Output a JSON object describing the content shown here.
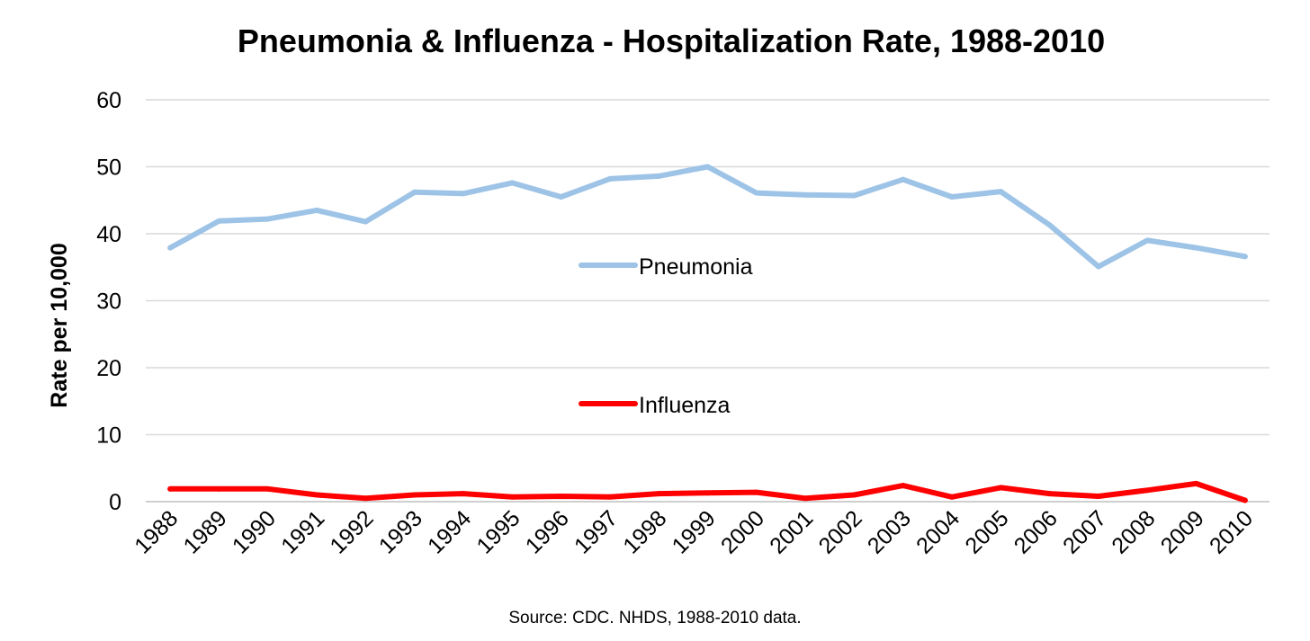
{
  "chart_data": {
    "type": "line",
    "title": "Pneumonia & Influenza - Hospitalization Rate, 1988-2010",
    "xlabel": "",
    "ylabel": "Rate per 10,000",
    "ylim": [
      0,
      60
    ],
    "yticks": [
      0,
      10,
      20,
      30,
      40,
      50,
      60
    ],
    "grid": true,
    "categories": [
      "1988",
      "1989",
      "1990",
      "1991",
      "1992",
      "1993",
      "1994",
      "1995",
      "1996",
      "1997",
      "1998",
      "1999",
      "2000",
      "2001",
      "2002",
      "2003",
      "2004",
      "2005",
      "2006",
      "2007",
      "2008",
      "2009",
      "2010"
    ],
    "series": [
      {
        "name": "Pneumonia",
        "color": "#9dc3e6",
        "values": [
          37.9,
          41.9,
          42.2,
          43.5,
          41.8,
          46.2,
          46.0,
          47.6,
          45.5,
          48.2,
          48.6,
          50.0,
          46.1,
          45.8,
          45.7,
          48.1,
          45.5,
          46.3,
          41.3,
          35.1,
          39.0,
          37.9,
          36.6
        ]
      },
      {
        "name": "Influenza",
        "color": "#ff0000",
        "values": [
          1.9,
          1.9,
          1.9,
          1.0,
          0.5,
          1.0,
          1.2,
          0.7,
          0.8,
          0.7,
          1.2,
          1.3,
          1.4,
          0.5,
          1.0,
          2.4,
          0.7,
          2.1,
          1.2,
          0.8,
          1.7,
          2.7,
          0.2
        ]
      }
    ],
    "source": "Source: CDC. NHDS, 1988-2010 data."
  }
}
